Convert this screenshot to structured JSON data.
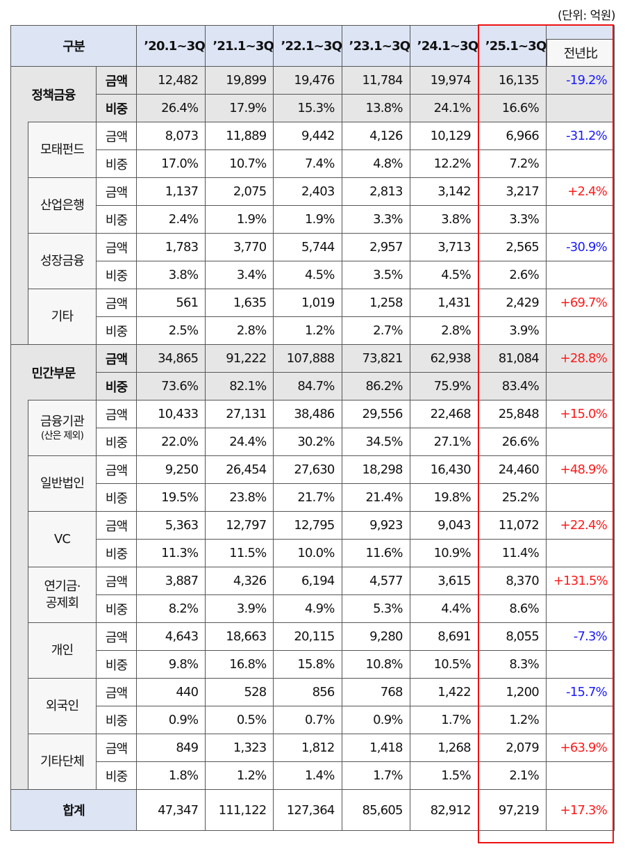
{
  "unit_label": "(단위: 억원)",
  "header": {
    "category": "구분",
    "years": [
      "’20.1~3Q",
      "’21.1~3Q",
      "’22.1~3Q",
      "’23.1~3Q",
      "’24.1~3Q",
      "’25.1~3Q"
    ],
    "yoy": "전년比"
  },
  "row_kinds": {
    "amount": "금액",
    "share": "비중"
  },
  "groups": [
    {
      "name": "정책금융",
      "amount": [
        "12,482",
        "19,899",
        "19,476",
        "11,784",
        "19,974",
        "16,135"
      ],
      "amount_yoy": "-19.2%",
      "share": [
        "26.4%",
        "17.9%",
        "15.3%",
        "13.8%",
        "24.1%",
        "16.6%"
      ],
      "subs": [
        {
          "name": "모태펀드",
          "amount": [
            "8,073",
            "11,889",
            "9,442",
            "4,126",
            "10,129",
            "6,966"
          ],
          "yoy": "-31.2%",
          "share": [
            "17.0%",
            "10.7%",
            "7.4%",
            "4.8%",
            "12.2%",
            "7.2%"
          ]
        },
        {
          "name": "산업은행",
          "amount": [
            "1,137",
            "2,075",
            "2,403",
            "2,813",
            "3,142",
            "3,217"
          ],
          "yoy": "+2.4%",
          "share": [
            "2.4%",
            "1.9%",
            "1.9%",
            "3.3%",
            "3.8%",
            "3.3%"
          ]
        },
        {
          "name": "성장금융",
          "amount": [
            "1,783",
            "3,770",
            "5,744",
            "2,957",
            "3,713",
            "2,565"
          ],
          "yoy": "-30.9%",
          "share": [
            "3.8%",
            "3.4%",
            "4.5%",
            "3.5%",
            "4.5%",
            "2.6%"
          ]
        },
        {
          "name": "기타",
          "amount": [
            "561",
            "1,635",
            "1,019",
            "1,258",
            "1,431",
            "2,429"
          ],
          "yoy": "+69.7%",
          "share": [
            "2.5%",
            "2.8%",
            "1.2%",
            "2.7%",
            "2.8%",
            "3.9%"
          ]
        }
      ]
    },
    {
      "name": "민간부문",
      "amount": [
        "34,865",
        "91,222",
        "107,888",
        "73,821",
        "62,938",
        "81,084"
      ],
      "amount_yoy": "+28.8%",
      "share": [
        "73.6%",
        "82.1%",
        "84.7%",
        "86.2%",
        "75.9%",
        "83.4%"
      ],
      "subs": [
        {
          "name": "금융기관",
          "note": "(산은 제외)",
          "amount": [
            "10,433",
            "27,131",
            "38,486",
            "29,556",
            "22,468",
            "25,848"
          ],
          "yoy": "+15.0%",
          "share": [
            "22.0%",
            "24.4%",
            "30.2%",
            "34.5%",
            "27.1%",
            "26.6%"
          ]
        },
        {
          "name": "일반법인",
          "amount": [
            "9,250",
            "26,454",
            "27,630",
            "18,298",
            "16,430",
            "24,460"
          ],
          "yoy": "+48.9%",
          "share": [
            "19.5%",
            "23.8%",
            "21.7%",
            "21.4%",
            "19.8%",
            "25.2%"
          ]
        },
        {
          "name": "VC",
          "amount": [
            "5,363",
            "12,797",
            "12,795",
            "9,923",
            "9,043",
            "11,072"
          ],
          "yoy": "+22.4%",
          "share": [
            "11.3%",
            "11.5%",
            "10.0%",
            "11.6%",
            "10.9%",
            "11.4%"
          ]
        },
        {
          "name": "연기금·",
          "name2": "공제회",
          "amount": [
            "3,887",
            "4,326",
            "6,194",
            "4,577",
            "3,615",
            "8,370"
          ],
          "yoy": "+131.5%",
          "share": [
            "8.2%",
            "3.9%",
            "4.9%",
            "5.3%",
            "4.4%",
            "8.6%"
          ]
        },
        {
          "name": "개인",
          "amount": [
            "4,643",
            "18,663",
            "20,115",
            "9,280",
            "8,691",
            "8,055"
          ],
          "yoy": "-7.3%",
          "share": [
            "9.8%",
            "16.8%",
            "15.8%",
            "10.8%",
            "10.5%",
            "8.3%"
          ]
        },
        {
          "name": "외국인",
          "amount": [
            "440",
            "528",
            "856",
            "768",
            "1,422",
            "1,200"
          ],
          "yoy": "-15.7%",
          "share": [
            "0.9%",
            "0.5%",
            "0.7%",
            "0.9%",
            "1.7%",
            "1.2%"
          ]
        },
        {
          "name": "기타단체",
          "amount": [
            "849",
            "1,323",
            "1,812",
            "1,418",
            "1,268",
            "2,079"
          ],
          "yoy": "+63.9%",
          "share": [
            "1.8%",
            "1.2%",
            "1.4%",
            "1.7%",
            "1.5%",
            "2.1%"
          ]
        }
      ]
    }
  ],
  "total": {
    "label": "합계",
    "values": [
      "47,347",
      "111,122",
      "127,364",
      "85,605",
      "82,912",
      "97,219"
    ],
    "yoy": "+17.3%"
  },
  "colors": {
    "header_bg": "#dde5f5",
    "group_bg": "#e6e6e6",
    "sub_label_bg": "#f7f7f7",
    "negative": "#1a1aff",
    "positive": "#ff1a1a",
    "highlight_box": "#ee1111"
  }
}
